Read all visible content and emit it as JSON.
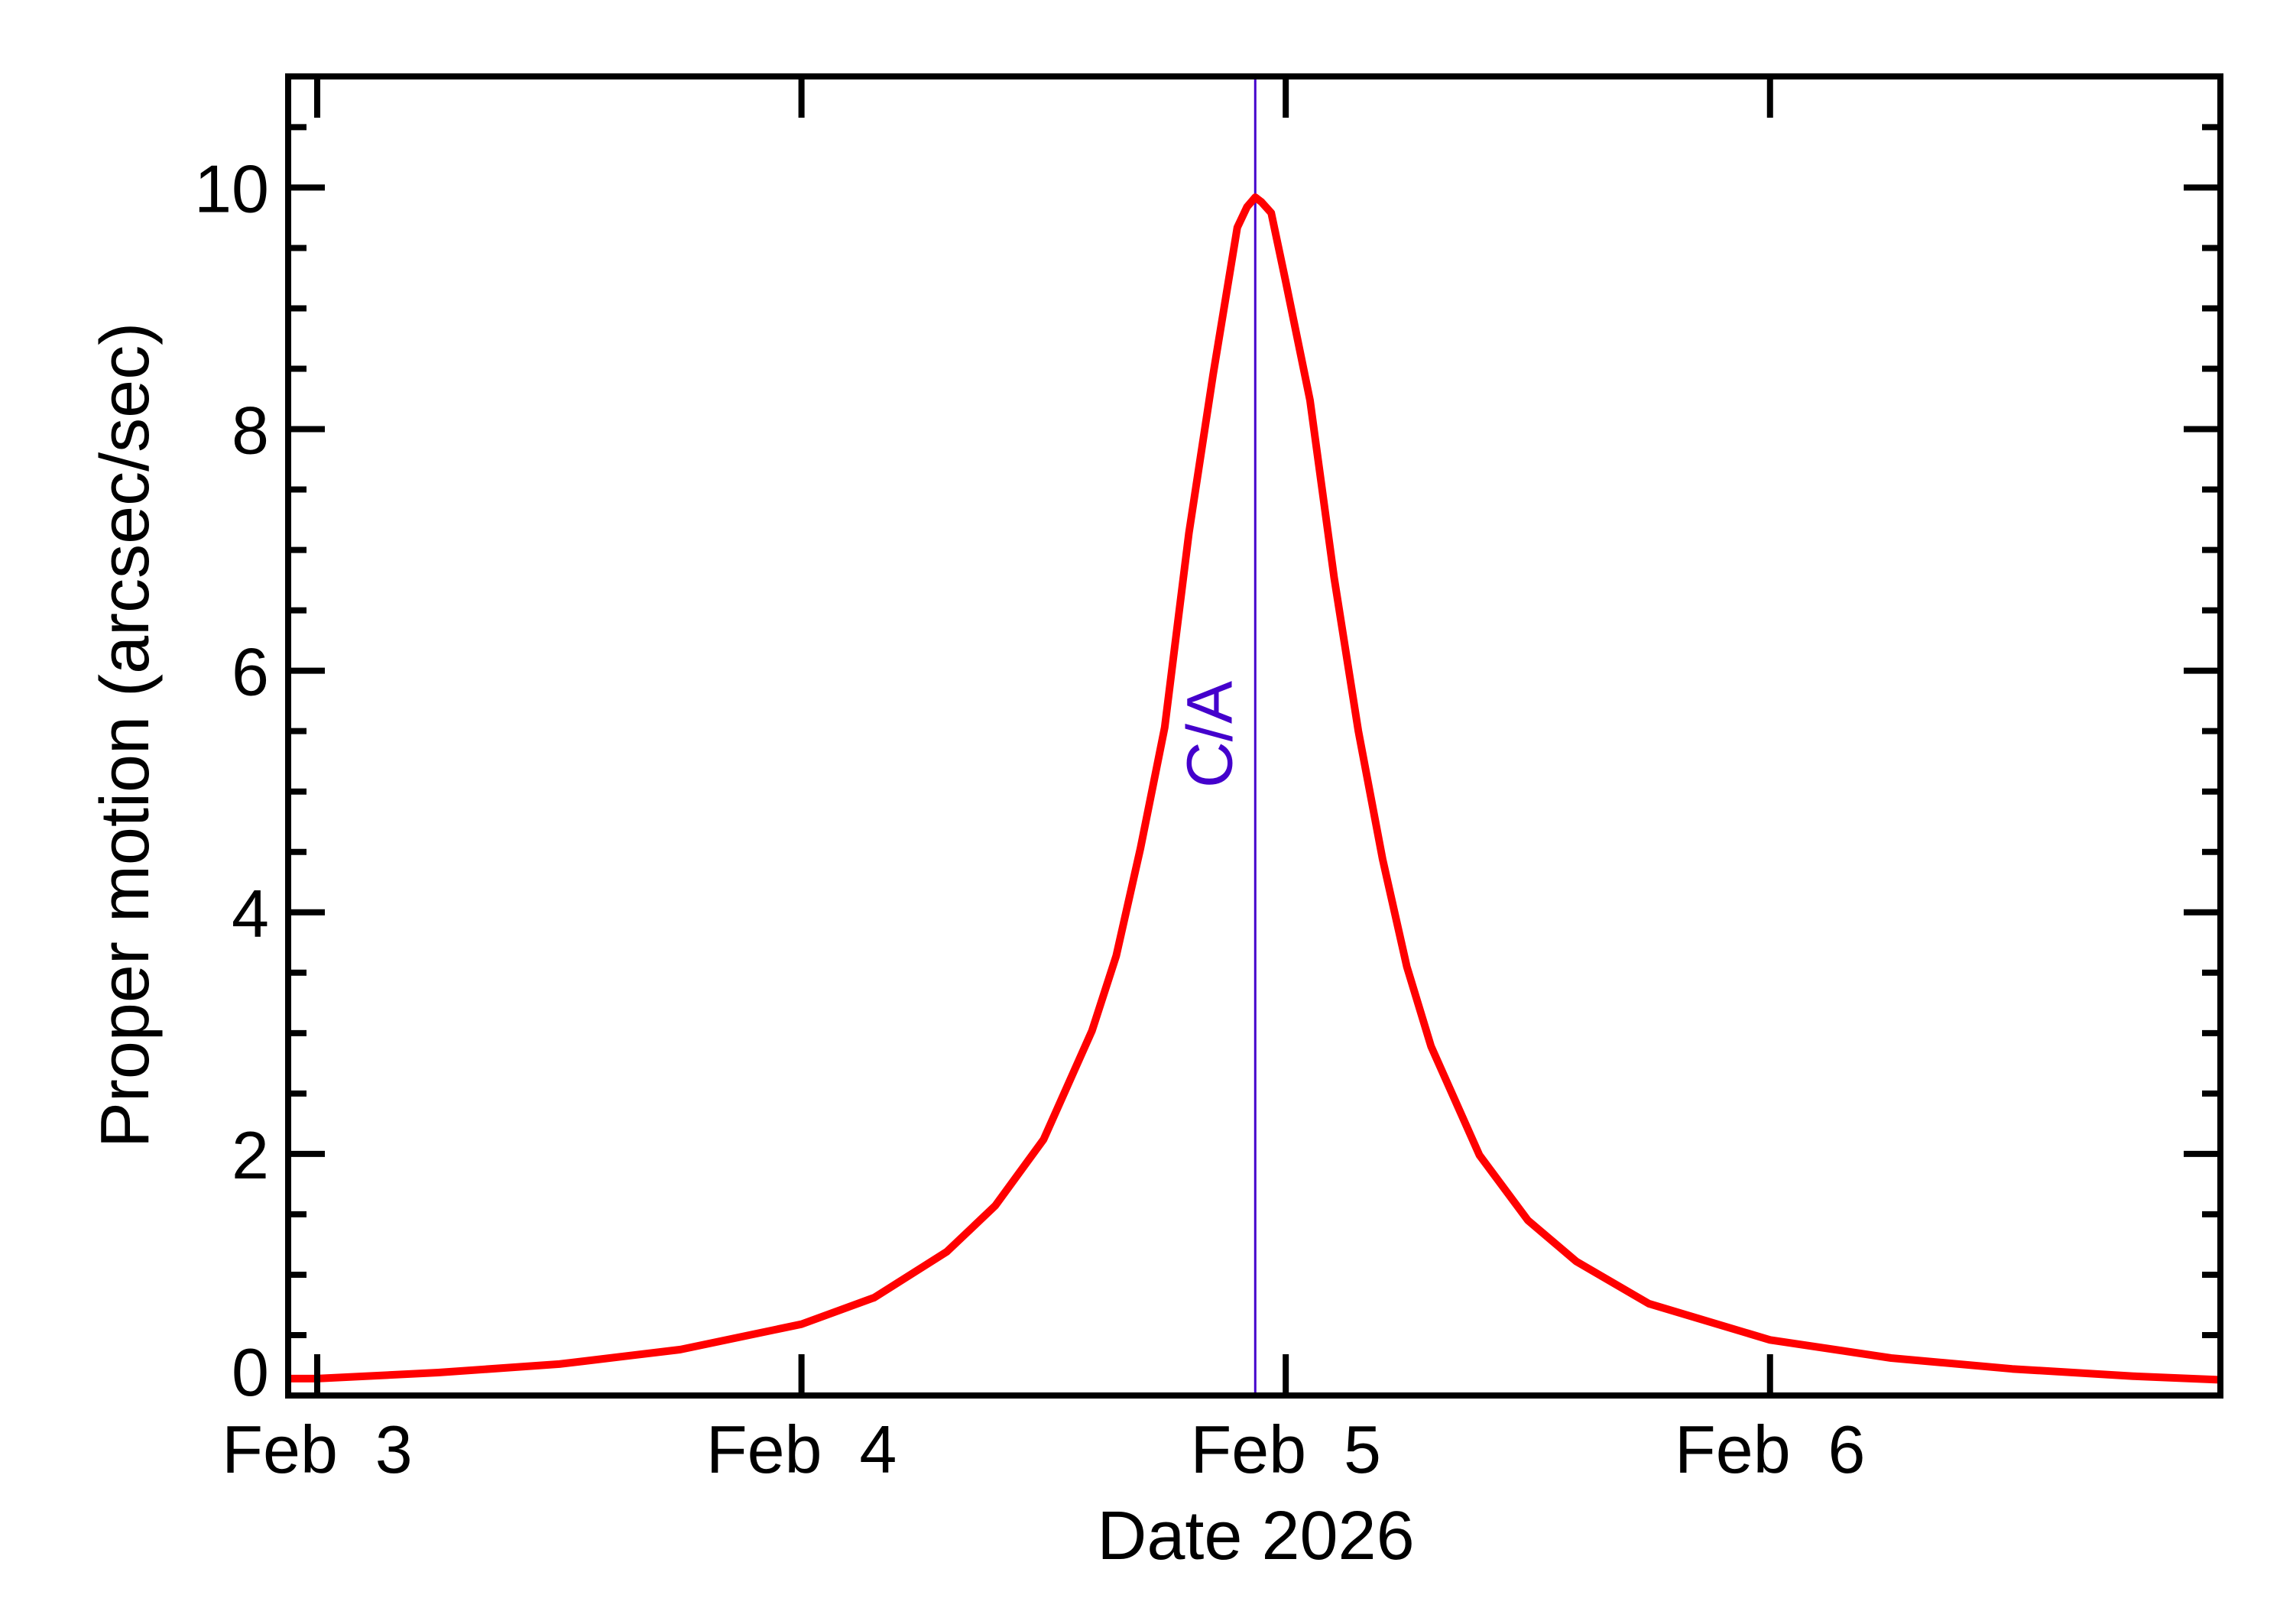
{
  "chart_data": {
    "type": "line",
    "title": "",
    "xlabel": "Date 2026",
    "ylabel": "Proper motion (arcsec/sec)",
    "x_unit": "day of February 2026",
    "xlim": [
      2.94,
      6.93
    ],
    "ylim": [
      0,
      10.92
    ],
    "grid": false,
    "legend": null,
    "x_ticks": [
      {
        "value": 3,
        "label": "Feb  3"
      },
      {
        "value": 4,
        "label": "Feb  4"
      },
      {
        "value": 5,
        "label": "Feb  5"
      },
      {
        "value": 6,
        "label": "Feb  6"
      }
    ],
    "y_ticks": [
      {
        "value": 0,
        "label": "0"
      },
      {
        "value": 2,
        "label": "2"
      },
      {
        "value": 4,
        "label": "4"
      },
      {
        "value": 6,
        "label": "6"
      },
      {
        "value": 8,
        "label": "8"
      },
      {
        "value": 10,
        "label": "10"
      }
    ],
    "y_minor_step": 0.5,
    "series": [
      {
        "name": "Proper motion",
        "color": "#ff0000",
        "x": [
          2.94,
          3.0,
          3.25,
          3.5,
          3.75,
          4.0,
          4.15,
          4.3,
          4.4,
          4.5,
          4.6,
          4.65,
          4.7,
          4.75,
          4.8,
          4.85,
          4.9,
          4.92,
          4.937,
          4.95,
          4.97,
          5.0,
          5.05,
          5.1,
          5.15,
          5.2,
          5.25,
          5.3,
          5.4,
          5.5,
          5.6,
          5.75,
          6.0,
          6.25,
          6.5,
          6.75,
          6.93
        ],
        "values": [
          0.14,
          0.14,
          0.19,
          0.26,
          0.38,
          0.59,
          0.81,
          1.19,
          1.57,
          2.12,
          3.02,
          3.64,
          4.53,
          5.53,
          7.14,
          8.45,
          9.67,
          9.84,
          9.92,
          9.88,
          9.79,
          9.22,
          8.24,
          6.77,
          5.5,
          4.44,
          3.55,
          2.89,
          1.99,
          1.45,
          1.11,
          0.76,
          0.46,
          0.31,
          0.22,
          0.16,
          0.13
        ]
      }
    ],
    "annotations": [
      {
        "type": "vline",
        "x": 4.937,
        "label": "C/A",
        "color": "#4400cc"
      }
    ]
  }
}
